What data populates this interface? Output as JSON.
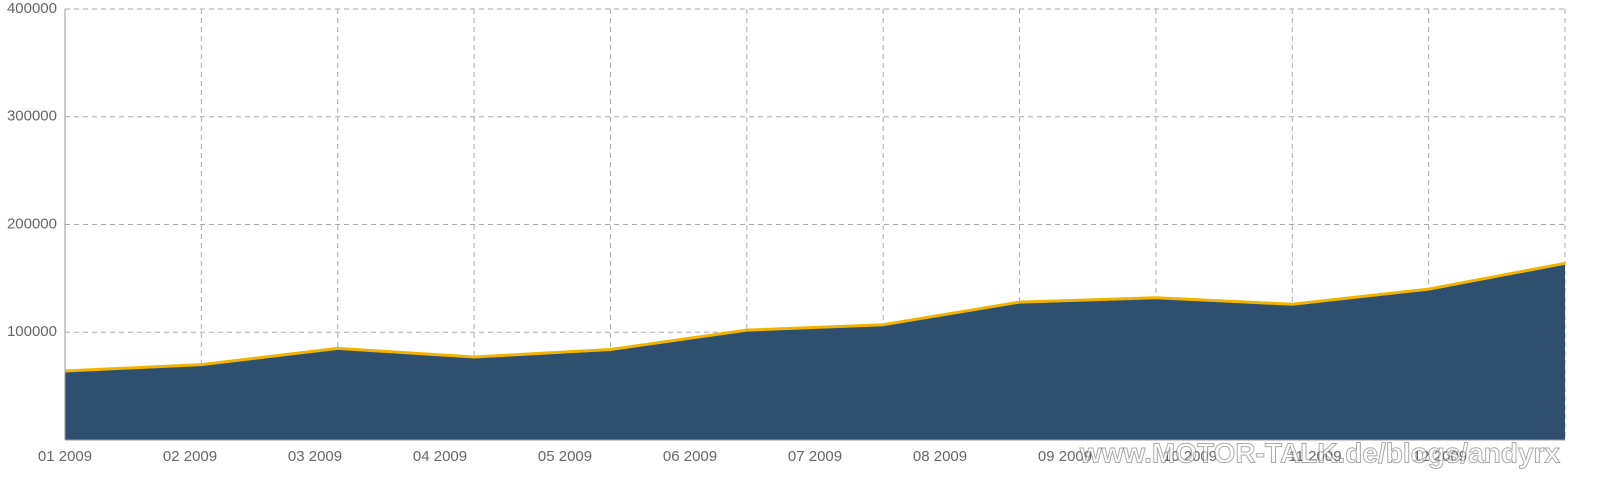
{
  "chart_data": {
    "type": "area",
    "categories": [
      "01 2009",
      "02 2009",
      "03 2009",
      "04 2009",
      "05 2009",
      "06 2009",
      "07 2009",
      "08 2009",
      "09 2009",
      "10 2009",
      "11 2009",
      "12 2009"
    ],
    "values": [
      64000,
      70000,
      85000,
      77000,
      84000,
      102000,
      107000,
      128000,
      132000,
      126000,
      140000,
      164000
    ],
    "color": "#2f4f6e",
    "line_color": "#f0b400",
    "ylim": [
      0,
      400000
    ],
    "yticks": [
      100000,
      200000,
      300000,
      400000
    ],
    "grid": true,
    "watermark": "www.MOTOR-TALK.de/blogs/andyrx"
  }
}
